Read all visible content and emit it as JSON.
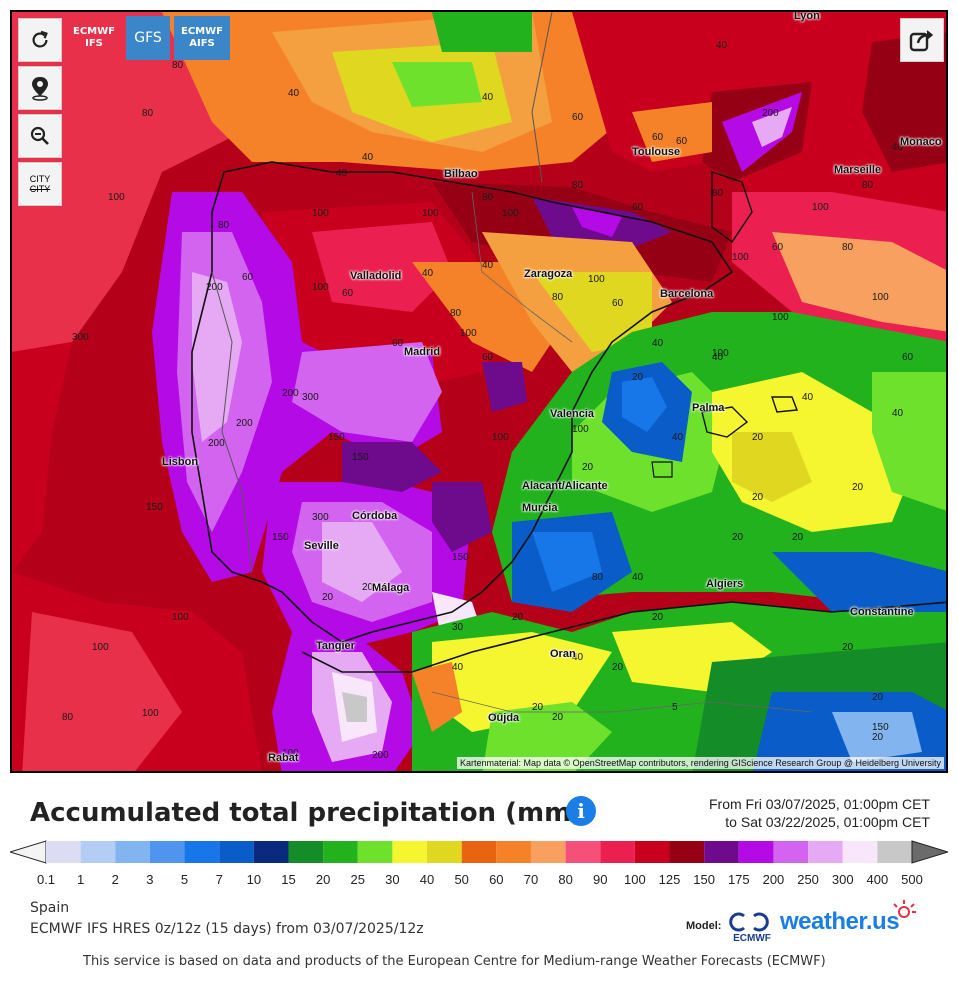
{
  "controls": {
    "refresh_icon": "refresh-icon",
    "location_icon": "location-pin-icon",
    "zoom_out_icon": "zoom-out-icon",
    "city_toggle_label": "CITY",
    "share_icon": "share-icon"
  },
  "models": [
    {
      "line1": "ECMWF",
      "line2": "IFS",
      "color": "#e8304a"
    },
    {
      "line1": "GFS",
      "line2": "",
      "color": "#3a86c8"
    },
    {
      "line1": "ECMWF",
      "line2": "AIFS",
      "color": "#3a86c8"
    }
  ],
  "cities": [
    {
      "name": "Lyon"
    },
    {
      "name": "Toulouse"
    },
    {
      "name": "Monaco"
    },
    {
      "name": "Marseille"
    },
    {
      "name": "Bilbao"
    },
    {
      "name": "Zaragoza"
    },
    {
      "name": "Barcelona"
    },
    {
      "name": "Valladolid"
    },
    {
      "name": "Madrid"
    },
    {
      "name": "Palma"
    },
    {
      "name": "Valencia"
    },
    {
      "name": "Lisbon"
    },
    {
      "name": "Alacant/Alicante"
    },
    {
      "name": "Murcia"
    },
    {
      "name": "Córdoba"
    },
    {
      "name": "Seville"
    },
    {
      "name": "Málaga"
    },
    {
      "name": "Algiers"
    },
    {
      "name": "Constantine"
    },
    {
      "name": "Tangier"
    },
    {
      "name": "Oran"
    },
    {
      "name": "Oujda"
    },
    {
      "name": "Rabat"
    }
  ],
  "contour_labels": [
    "80",
    "40",
    "40",
    "40",
    "60",
    "60",
    "40",
    "80",
    "200",
    "80",
    "40",
    "40",
    "100",
    "80",
    "100",
    "100",
    "80",
    "60",
    "60",
    "80",
    "100",
    "100",
    "100",
    "100",
    "80",
    "60",
    "100",
    "60",
    "40",
    "80",
    "40",
    "100",
    "60",
    "100",
    "60",
    "100",
    "60",
    "80",
    "40",
    "100",
    "100",
    "60",
    "80",
    "60",
    "40",
    "40",
    "40",
    "20",
    "40",
    "20",
    "20",
    "20",
    "20",
    "200",
    "200",
    "100",
    "150",
    "200",
    "150",
    "300",
    "200",
    "100",
    "100",
    "150",
    "20",
    "20",
    "20",
    "20",
    "150",
    "150",
    "150",
    "300",
    "20",
    "20",
    "20",
    "20",
    "20",
    "80",
    "300",
    "20",
    "20",
    "5",
    "20",
    "100",
    "100",
    "30",
    "40",
    "40",
    "40",
    "40",
    "20",
    "80",
    "100",
    "200"
  ],
  "attribution": "Kartenmaterial: Map data © OpenStreetMap contributors, rendering GIScience Research Group @ Heidelberg University",
  "legend": {
    "title": "Accumulated total precipitation (mm)",
    "info_label": "i",
    "from": "From Fri 03/07/2025, 01:00pm CET",
    "to": "to Sat 03/22/2025, 01:00pm CET",
    "ticks": [
      "0.1",
      "1",
      "2",
      "3",
      "5",
      "7",
      "10",
      "15",
      "20",
      "25",
      "30",
      "40",
      "50",
      "60",
      "70",
      "80",
      "90",
      "100",
      "125",
      "150",
      "175",
      "200",
      "250",
      "300",
      "400",
      "500"
    ],
    "colors": [
      "#dcdcf2",
      "#b4cdf5",
      "#82b4f0",
      "#4f95ee",
      "#1877e8",
      "#0a5cc8",
      "#0a2a80",
      "#148c28",
      "#21b21e",
      "#6ee12d",
      "#f5f530",
      "#e0d820",
      "#e86410",
      "#f58228",
      "#f7a060",
      "#f5507a",
      "#ec2050",
      "#c8001e",
      "#960014",
      "#6e0a8c",
      "#b40ae6",
      "#d264f0",
      "#e6aaf5",
      "#f8e6fa",
      "#c8c8c8"
    ]
  },
  "region": "Spain",
  "run": "ECMWF IFS HRES 0z/12z (15 days) from 03/07/2025/12z",
  "model_label": "Model:",
  "ecmwf_logo_text": "ECMWF",
  "brand": "weather.us",
  "disclaimer": "This service is based on data and products of the European Centre for Medium-range Weather Forecasts (ECMWF)"
}
